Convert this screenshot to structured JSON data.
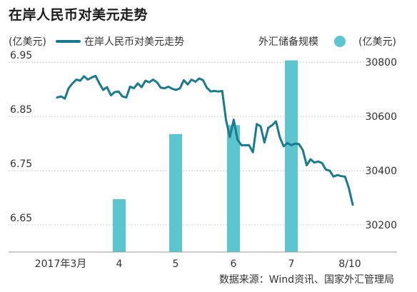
{
  "title": "在岸人民币对美元走势",
  "legend": {
    "left_unit": "(亿美元)",
    "line_label": "在岸人民币对美元走势",
    "bar_label": "外汇储备规模",
    "right_unit": "(亿美元)"
  },
  "source": "数据来源：Wind资讯、国家外汇管理局",
  "colors": {
    "line": "#1b7a8c",
    "bar": "#5bc6d0",
    "axis": "#999999"
  },
  "chart_data": {
    "type": "bar+line",
    "title": "在岸人民币对美元走势",
    "categories": [
      "2017年3月",
      "4",
      "5",
      "6",
      "7",
      "8/10"
    ],
    "left_axis": {
      "label": "(亿美元)",
      "ticks": [
        "6.95",
        "6.85",
        "6.75",
        "6.65"
      ],
      "range": [
        6.6,
        6.97
      ]
    },
    "right_axis": {
      "label": "(亿美元)",
      "ticks": [
        "30800",
        "30600",
        "30400",
        "30200"
      ],
      "range": [
        30100,
        30840
      ]
    },
    "bars": {
      "name": "外汇储备规模",
      "categories": [
        "2017年3月",
        "4",
        "5",
        "6",
        "7"
      ],
      "values": [
        30090,
        30295,
        30535,
        30568,
        30807
      ]
    },
    "line": {
      "name": "在岸人民币对美元走势",
      "values": [
        6.885,
        6.887,
        6.883,
        6.902,
        6.911,
        6.918,
        6.916,
        6.924,
        6.918,
        6.922,
        6.925,
        6.911,
        6.899,
        6.904,
        6.889,
        6.895,
        6.896,
        6.887,
        6.885,
        6.905,
        6.902,
        6.911,
        6.904,
        6.916,
        6.913,
        6.918,
        6.913,
        6.903,
        6.902,
        6.905,
        6.901,
        6.899,
        6.902,
        6.917,
        6.909,
        6.918,
        6.914,
        6.92,
        6.917,
        6.903,
        6.896,
        6.897,
        6.896,
        6.897,
        6.843,
        6.812,
        6.844,
        6.807,
        6.797,
        6.797,
        6.797,
        6.784,
        6.836,
        6.832,
        6.802,
        6.829,
        6.834,
        6.841,
        6.812,
        6.795,
        6.801,
        6.797,
        6.8,
        6.799,
        6.788,
        6.76,
        6.771,
        6.765,
        6.767,
        6.764,
        6.752,
        6.75,
        6.739,
        6.742,
        6.74,
        6.739,
        6.718,
        6.687
      ]
    }
  }
}
